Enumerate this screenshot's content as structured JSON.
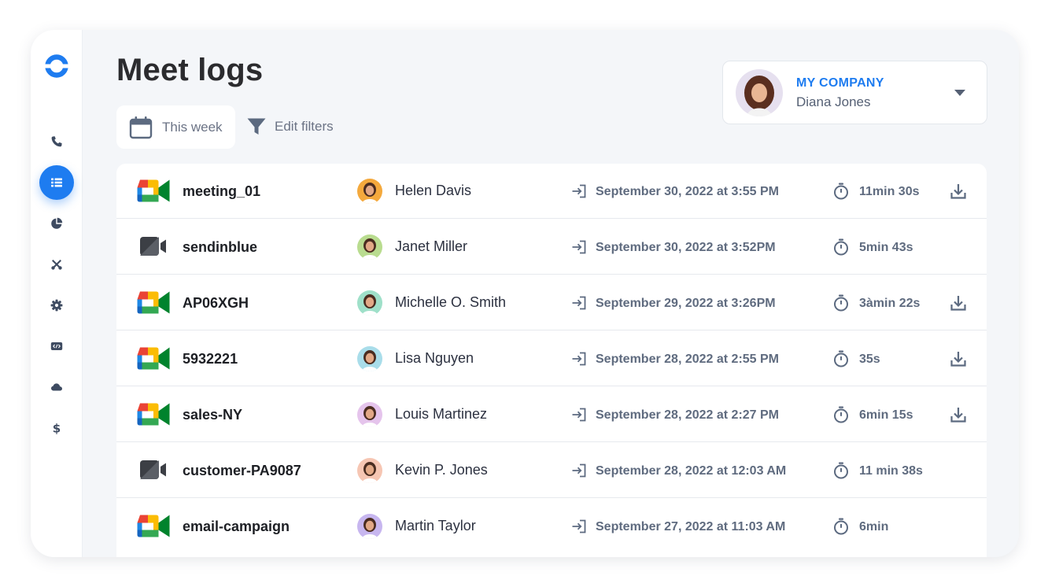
{
  "page": {
    "title": "Meet logs"
  },
  "filters": {
    "date_range": "This week",
    "edit_filters": "Edit filters"
  },
  "account": {
    "company": "MY COMPANY",
    "user": "Diana Jones"
  },
  "sidebar": {
    "items": [
      {
        "icon": "phone-icon",
        "active": false
      },
      {
        "icon": "list-icon",
        "active": true
      },
      {
        "icon": "pie-chart-icon",
        "active": false
      },
      {
        "icon": "tools-icon",
        "active": false
      },
      {
        "icon": "gear-icon",
        "active": false
      },
      {
        "icon": "code-icon",
        "active": false
      },
      {
        "icon": "cloud-icon",
        "active": false
      },
      {
        "icon": "dollar-icon",
        "active": false
      }
    ]
  },
  "colors": {
    "accent": "#1e7cf0",
    "background": "#f4f6f9",
    "text_muted": "#5f6b7f"
  },
  "logs": [
    {
      "meeting": "meeting_01",
      "app_icon": "google-meet-icon",
      "participant": "Helen Davis",
      "avatar_bg": "#f4a93d",
      "joined": "September 30, 2022 at 3:55 PM",
      "duration": "11min 30s",
      "downloadable": true
    },
    {
      "meeting": "sendinblue",
      "app_icon": "video-camera-icon",
      "participant": "Janet Miller",
      "avatar_bg": "#b9dc8f",
      "joined": "September 30, 2022 at 3:52PM",
      "duration": "5min 43s",
      "downloadable": false
    },
    {
      "meeting": "AP06XGH",
      "app_icon": "google-meet-icon",
      "participant": "Michelle O. Smith",
      "avatar_bg": "#9fe0c9",
      "joined": "September 29, 2022 at 3:26PM",
      "duration": "3àmin 22s",
      "downloadable": true
    },
    {
      "meeting": "5932221",
      "app_icon": "google-meet-icon",
      "participant": "Lisa Nguyen",
      "avatar_bg": "#a9ddea",
      "joined": "September 28, 2022 at 2:55 PM",
      "duration": "35s",
      "downloadable": true
    },
    {
      "meeting": "sales-NY",
      "app_icon": "google-meet-icon",
      "participant": "Louis  Martinez",
      "avatar_bg": "#e5c4ec",
      "joined": "September 28, 2022 at 2:27 PM",
      "duration": "6min 15s",
      "downloadable": true
    },
    {
      "meeting": "customer-PA9087",
      "app_icon": "video-camera-icon",
      "participant": "Kevin P. Jones",
      "avatar_bg": "#f6c6b3",
      "joined": "September 28, 2022 at 12:03 AM",
      "duration": "11 min 38s",
      "downloadable": false
    },
    {
      "meeting": "email-campaign",
      "app_icon": "google-meet-icon",
      "participant": "Martin Taylor",
      "avatar_bg": "#c7b6ef",
      "joined": "September 27, 2022 at 11:03 AM",
      "duration": "6min",
      "downloadable": false
    }
  ]
}
